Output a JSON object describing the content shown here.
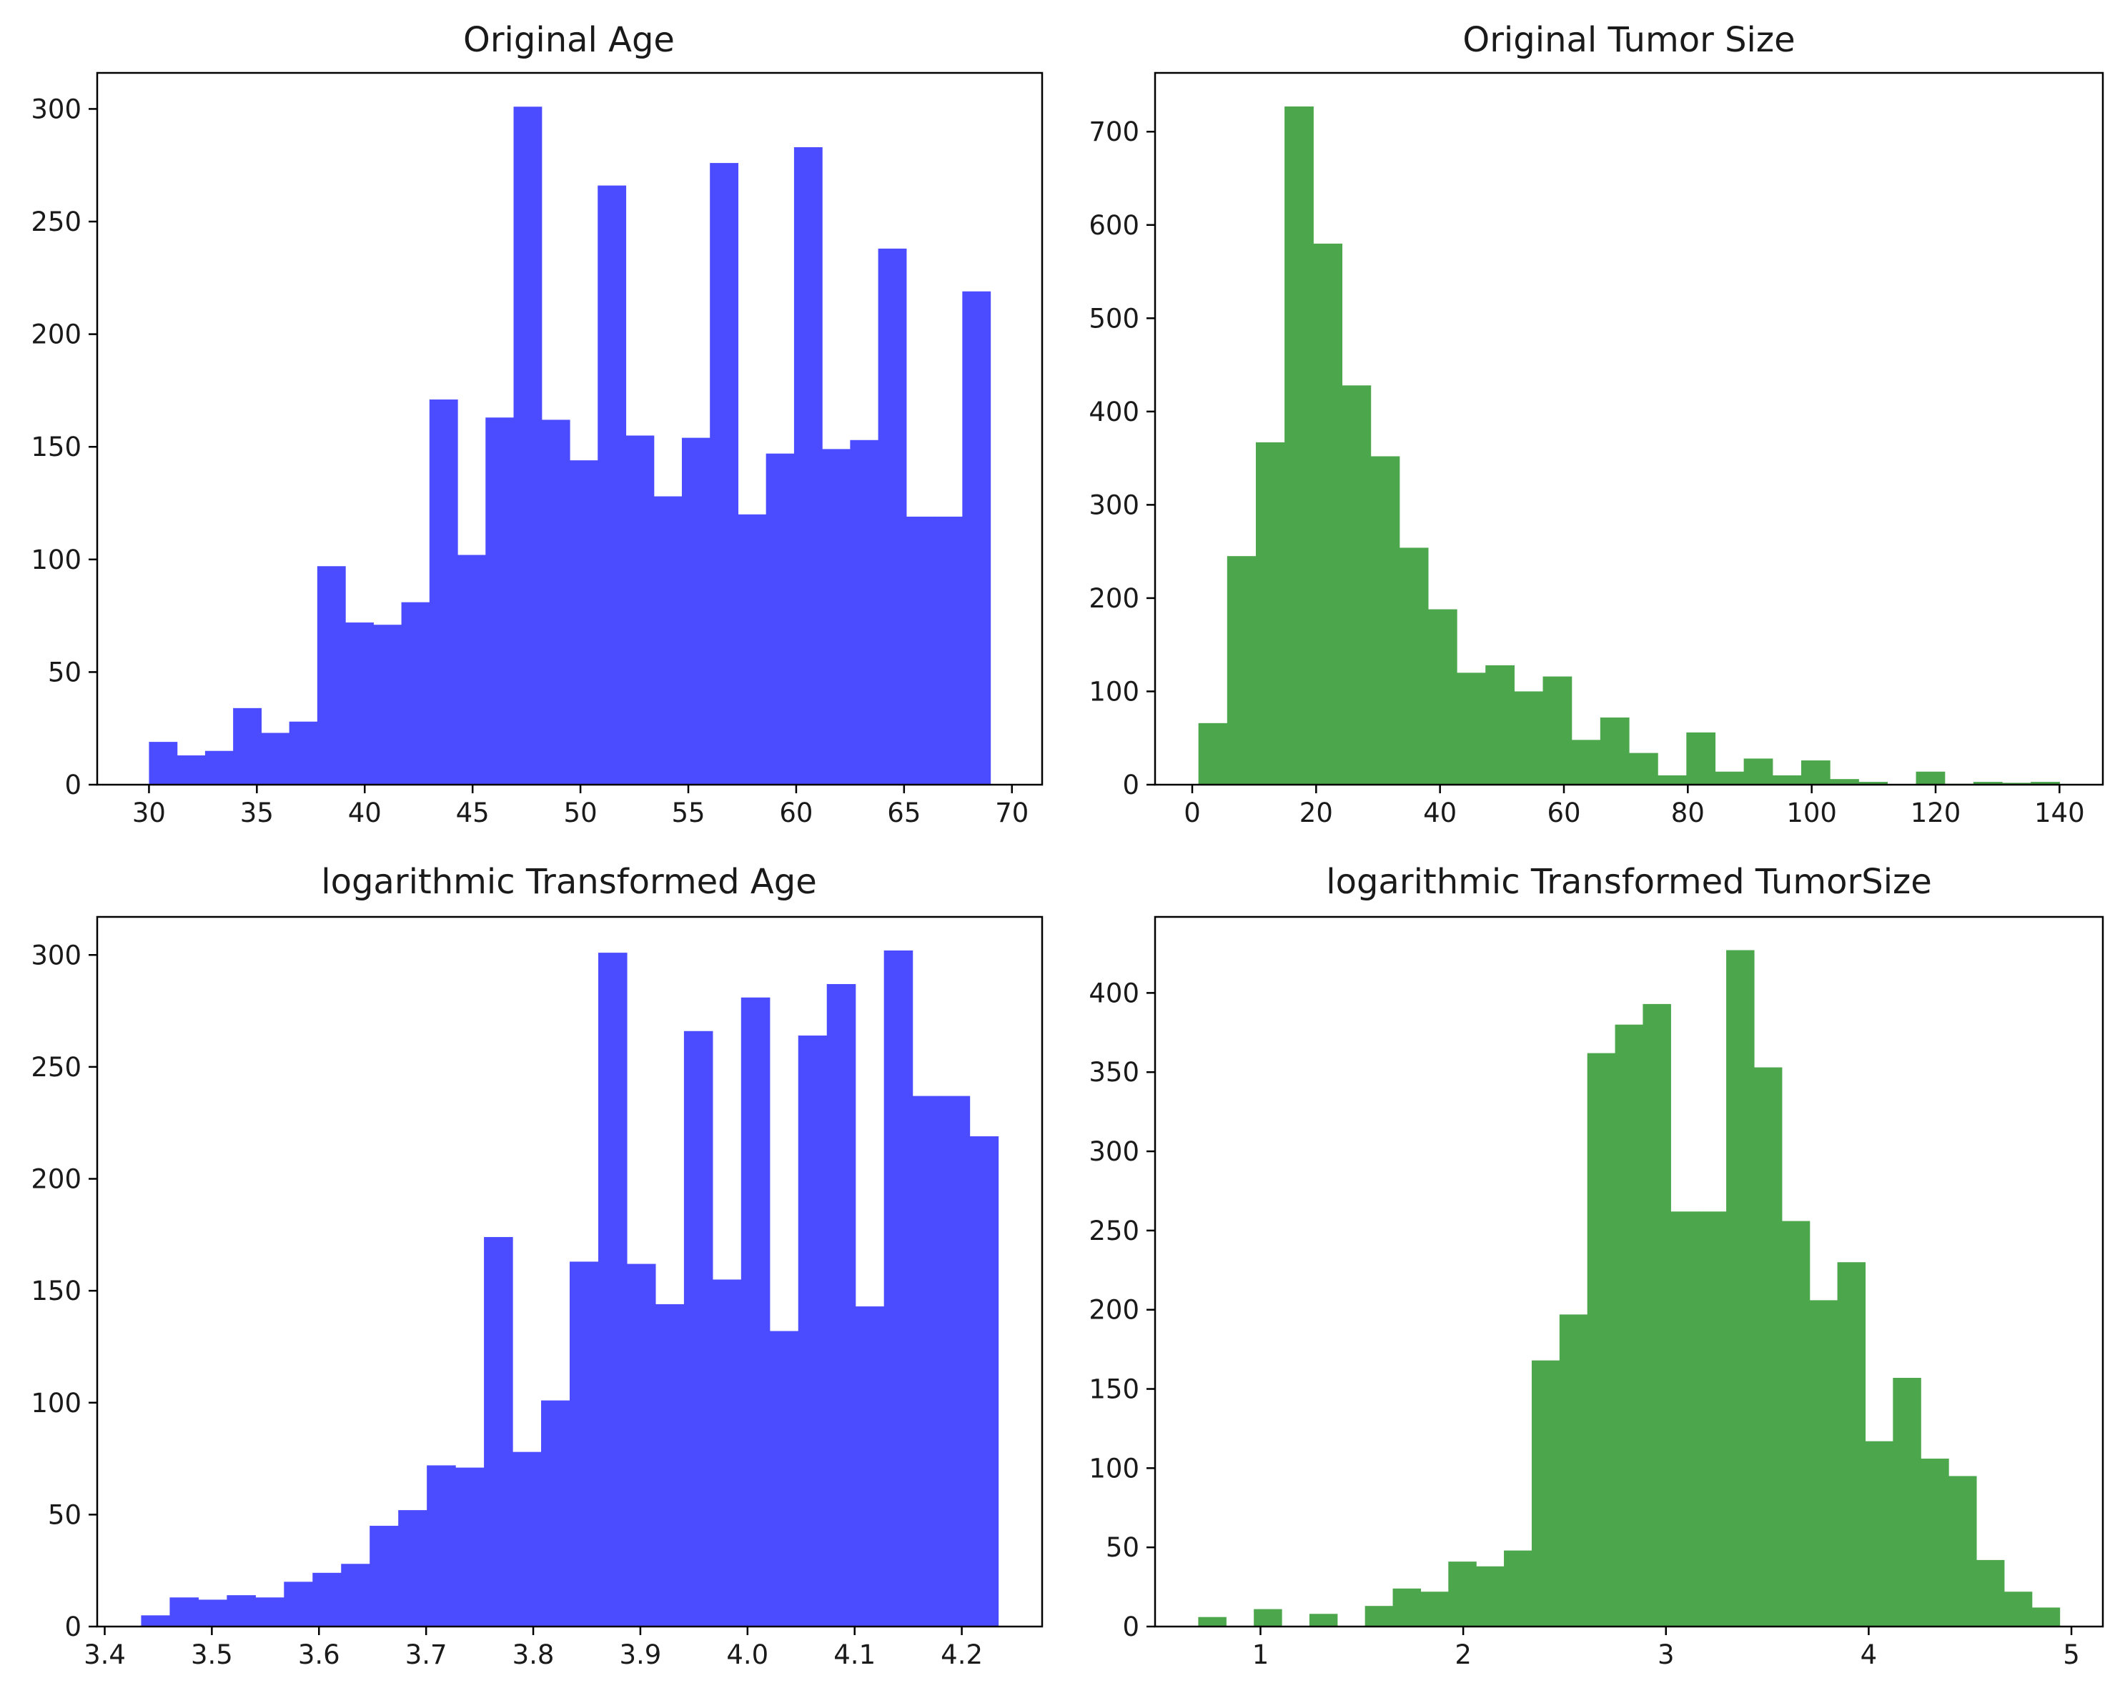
{
  "chart_data": [
    {
      "type": "histogram",
      "title": "Original Age",
      "color": "#4b4bff",
      "bin_range": [
        30,
        69
      ],
      "values": [
        19,
        13,
        15,
        34,
        23,
        28,
        97,
        72,
        71,
        81,
        171,
        102,
        163,
        301,
        162,
        144,
        266,
        155,
        128,
        154,
        276,
        120,
        147,
        283,
        149,
        153,
        238,
        119,
        119,
        219
      ],
      "xlim": [
        27.6,
        71.4
      ],
      "ylim": [
        0,
        316
      ],
      "x_ticks": [
        30,
        35,
        40,
        45,
        50,
        55,
        60,
        65,
        70
      ],
      "x_tick_labels": [
        "30",
        "35",
        "40",
        "45",
        "50",
        "55",
        "60",
        "65",
        "70"
      ],
      "y_ticks": [
        0,
        50,
        100,
        150,
        200,
        250,
        300
      ],
      "y_tick_labels": [
        "0",
        "50",
        "100",
        "150",
        "200",
        "250",
        "300"
      ]
    },
    {
      "type": "histogram",
      "title": "Original Tumor Size",
      "color": "#4ca64c",
      "bin_range": [
        1,
        140
      ],
      "values": [
        66,
        245,
        367,
        727,
        580,
        428,
        352,
        254,
        188,
        120,
        128,
        100,
        116,
        48,
        72,
        34,
        10,
        56,
        14,
        28,
        10,
        26,
        6,
        3,
        0,
        14,
        1,
        3,
        2,
        3
      ],
      "xlim": [
        -6.0,
        147.0
      ],
      "ylim": [
        0,
        763
      ],
      "x_ticks": [
        0,
        20,
        40,
        60,
        80,
        100,
        120,
        140
      ],
      "x_tick_labels": [
        "0",
        "20",
        "40",
        "60",
        "80",
        "100",
        "120",
        "140"
      ],
      "y_ticks": [
        0,
        100,
        200,
        300,
        400,
        500,
        600,
        700
      ],
      "y_tick_labels": [
        "0",
        "100",
        "200",
        "300",
        "400",
        "500",
        "600",
        "700"
      ]
    },
    {
      "type": "histogram",
      "title": "logarithmic Transformed Age",
      "color": "#4b4bff",
      "bin_range": [
        3.434,
        4.234
      ],
      "values": [
        5,
        13,
        12,
        14,
        13,
        20,
        24,
        28,
        45,
        52,
        72,
        71,
        174,
        78,
        101,
        163,
        301,
        162,
        144,
        266,
        155,
        281,
        132,
        264,
        287,
        143,
        302,
        237,
        237,
        219
      ],
      "xlim": [
        3.393,
        4.275
      ],
      "ylim": [
        0,
        317
      ],
      "x_ticks": [
        3.4,
        3.5,
        3.6,
        3.7,
        3.8,
        3.9,
        4.0,
        4.1,
        4.2
      ],
      "x_tick_labels": [
        "3.4",
        "3.5",
        "3.6",
        "3.7",
        "3.8",
        "3.9",
        "4.0",
        "4.1",
        "4.2"
      ],
      "y_ticks": [
        0,
        50,
        100,
        150,
        200,
        250,
        300
      ],
      "y_tick_labels": [
        "0",
        "50",
        "100",
        "150",
        "200",
        "250",
        "300"
      ]
    },
    {
      "type": "histogram",
      "title": "logarithmic Transformed TumorSize",
      "color": "#4ca64c",
      "bin_range": [
        0.693,
        4.942
      ],
      "values": [
        6,
        0,
        11,
        0,
        8,
        0,
        13,
        24,
        22,
        41,
        38,
        48,
        168,
        197,
        362,
        380,
        393,
        262,
        262,
        427,
        353,
        256,
        206,
        230,
        117,
        157,
        106,
        95,
        42,
        22,
        12
      ],
      "xlim": [
        0.48,
        5.155
      ],
      "ylim": [
        0,
        448
      ],
      "x_ticks": [
        1,
        2,
        3,
        4,
        5
      ],
      "x_tick_labels": [
        "1",
        "2",
        "3",
        "4",
        "5"
      ],
      "y_ticks": [
        0,
        50,
        100,
        150,
        200,
        250,
        300,
        350,
        400
      ],
      "y_tick_labels": [
        "0",
        "50",
        "100",
        "150",
        "200",
        "250",
        "300",
        "350",
        "400"
      ]
    }
  ]
}
